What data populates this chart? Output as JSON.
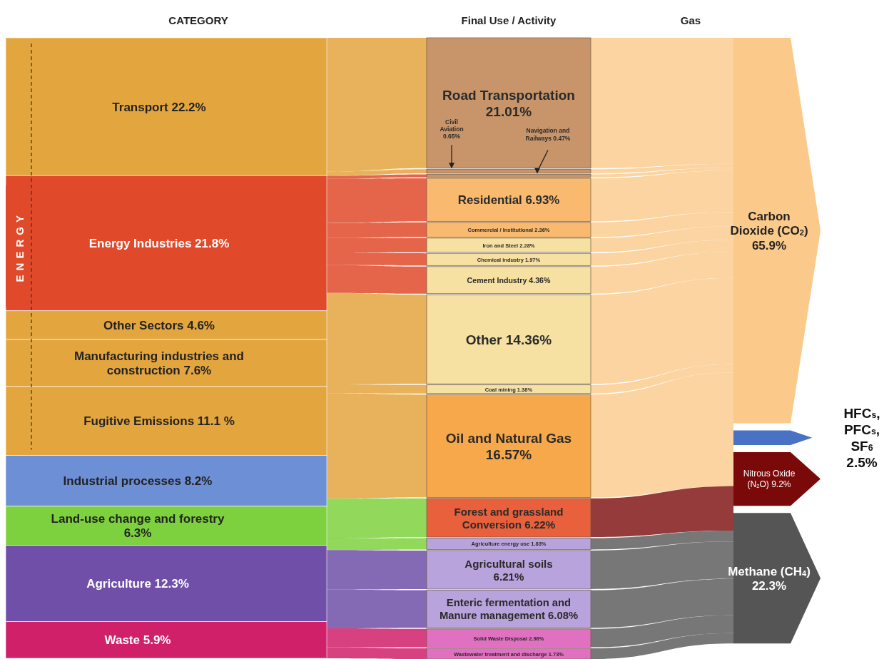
{
  "chart_data": [
    {
      "type": "other",
      "title": "CATEGORY",
      "annotations": [
        {
          "text": "ENERGY",
          "y": "Fugitive Emissions"
        }
      ],
      "categories": [
        "Transport",
        "Energy Industries",
        "Other Sectors",
        "Manufacturing industries and construction",
        "Fugitive Emissions",
        "Industrial processes",
        "Land-use change and forestry",
        "Agriculture",
        "Waste"
      ],
      "values": [
        22.2,
        21.8,
        4.6,
        7.6,
        11.1,
        8.2,
        6.3,
        12.3,
        5.9
      ],
      "value_labels": [
        "22.2%",
        "21.8%",
        "4.6%",
        "7.6%",
        "11.1 %",
        "8.2%",
        "6.3%",
        "12.3%",
        "5.9%"
      ],
      "colors": [
        "#e3a53e",
        "#e04a2a",
        "#e3a53e",
        "#e3a53e",
        "#e3a53e",
        "#6c8fd6",
        "#7ed13e",
        "#6f4fa8",
        "#d0206a"
      ]
    },
    {
      "type": "other",
      "title": "Final Use / Activity",
      "categories": [
        "Road Transportation",
        "Civil Aviation",
        "Navigation and Railways",
        "Residential",
        "Commercial / Institutional",
        "Iron and Steel",
        "Chemical industry",
        "Cement Industry",
        "Other",
        "Coal mining",
        "Oil and Natural Gas",
        "Forest and grassland Conversion",
        "Agriculture energy use",
        "Agricultural soils",
        "Enteric fermentation and Manure management",
        "Solid Waste Disposal",
        "Wastewater treatment and discharge"
      ],
      "values": [
        21.01,
        0.65,
        0.47,
        6.93,
        2.36,
        2.28,
        1.97,
        4.36,
        14.36,
        1.38,
        16.57,
        6.22,
        1.83,
        6.21,
        6.08,
        2.96,
        1.73
      ],
      "value_labels": [
        "21.01%",
        "0.65%",
        "0.47%",
        "6.93%",
        "2.36%",
        "2.28%",
        "1.97%",
        "4.36%",
        "14.36%",
        "1.38%",
        "16.57%",
        "6.22%",
        "1.83%",
        "6.21%",
        "6.08%",
        "2.96%",
        "1.73%"
      ],
      "colors": [
        "#c8956a",
        "#c8956a",
        "#c8956a",
        "#f9b96e",
        "#f9b96e",
        "#f6e0a2",
        "#f6e0a2",
        "#f6e0a2",
        "#f6e0a2",
        "#f6e0a2",
        "#f6a84a",
        "#e8603c",
        "#b9a3dc",
        "#b9a3dc",
        "#b9a3dc",
        "#e070c0",
        "#e070c0"
      ]
    },
    {
      "type": "other",
      "title": "Gas",
      "categories": [
        "Carbon Dioxide (CO$_{2}$)",
        "HFC$_{s}$, PFC$_{s}$, SF$_{6}$",
        "Nitrous Oxide (N$_{2}$O)",
        "Methane (CH$_{4}$)"
      ],
      "values": [
        65.9,
        2.5,
        9.2,
        22.3
      ],
      "value_labels": [
        "65.9%",
        "2.5%",
        "9.2%",
        "22.3%"
      ],
      "colors": [
        "#fbc98a",
        "#4a72c4",
        "#7a0a0a",
        "#555555"
      ]
    }
  ]
}
